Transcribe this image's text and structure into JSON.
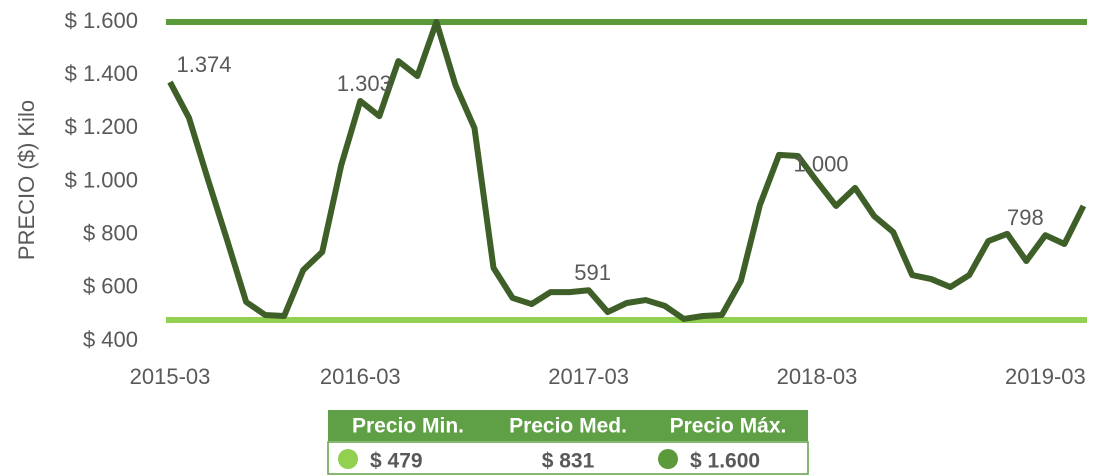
{
  "chart_data": {
    "type": "line",
    "y_label": "PRECIO ($) Kilo",
    "categories": [
      "2015-03",
      null,
      null,
      null,
      null,
      null,
      null,
      null,
      null,
      null,
      "2016-03",
      null,
      null,
      null,
      null,
      null,
      null,
      null,
      null,
      null,
      null,
      null,
      "2017-03",
      null,
      null,
      null,
      null,
      null,
      null,
      null,
      null,
      null,
      null,
      null,
      "2018-03",
      null,
      null,
      null,
      null,
      null,
      null,
      null,
      null,
      null,
      null,
      null,
      "2019-03",
      null,
      null
    ],
    "series": [
      {
        "color": "#3f5f28",
        "values": [
          1374,
          1239,
          1006,
          780,
          547,
          498,
          494,
          667,
          735,
          1062,
          1303,
          1246,
          1453,
          1397,
          1600,
          1363,
          1201,
          675,
          562,
          539,
          584,
          584,
          591,
          509,
          543,
          554,
          532,
          483,
          494,
          498,
          626,
          912,
          1100,
          1096,
          1000,
          908,
          976,
          870,
          810,
          648,
          633,
          603,
          648,
          776,
          803,
          701,
          798,
          765,
          908
        ],
        "value_labels": [
          "1.374",
          null,
          null,
          null,
          null,
          null,
          null,
          null,
          null,
          null,
          "1.303",
          null,
          null,
          null,
          null,
          null,
          null,
          null,
          null,
          null,
          null,
          null,
          "591",
          null,
          null,
          null,
          null,
          null,
          null,
          null,
          null,
          null,
          null,
          null,
          "1.000",
          null,
          null,
          null,
          null,
          null,
          null,
          null,
          null,
          null,
          null,
          null,
          "798",
          null,
          null
        ]
      }
    ],
    "ylim": [
      400,
      1600
    ],
    "yticks": [
      {
        "value": 400,
        "label": "$ 400"
      },
      {
        "value": 600,
        "label": "$ 600"
      },
      {
        "value": 800,
        "label": "$ 800"
      },
      {
        "value": 1000,
        "label": "$ 1.000"
      },
      {
        "value": 1200,
        "label": "$ 1.200"
      },
      {
        "value": 1400,
        "label": "$ 1.400"
      },
      {
        "value": 1600,
        "label": "$ 1.600"
      }
    ],
    "summary": [
      {
        "name": "Precio Min.",
        "value": 479,
        "label": "$ 479",
        "color": "#92d050"
      },
      {
        "name": "Precio Med.",
        "value": 831,
        "label": "$ 831"
      },
      {
        "name": "Precio Máx.",
        "value": 1600,
        "label": "$ 1.600",
        "color": "#5b9a3a"
      }
    ]
  }
}
